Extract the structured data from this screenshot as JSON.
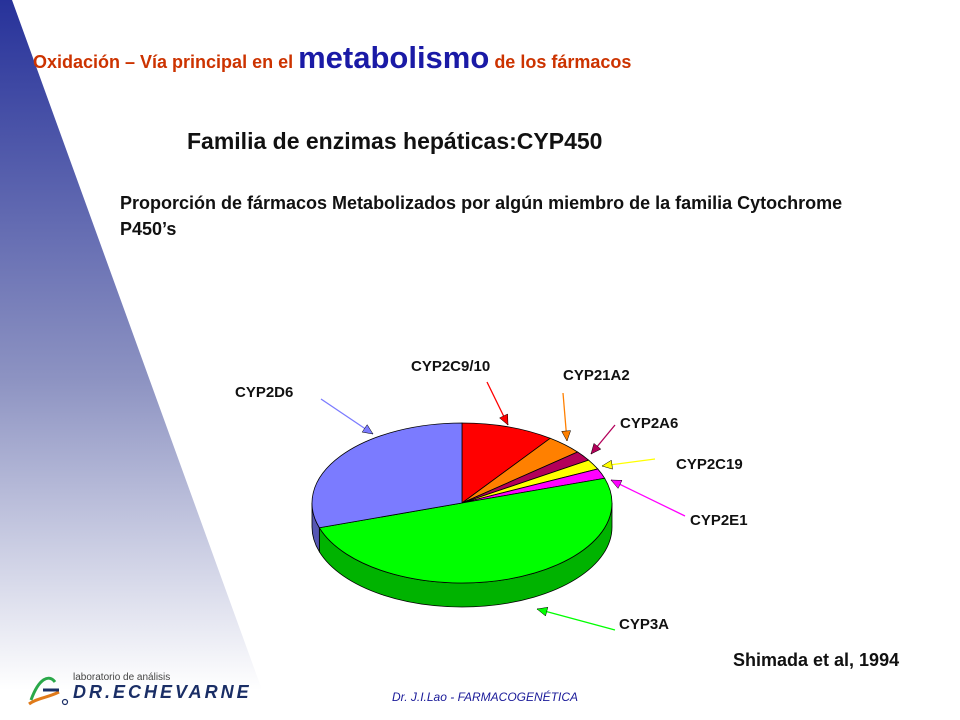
{
  "header": {
    "part1": "Oxidación – Vía principal en el ",
    "part2": "metabolismo",
    "part3": " de los fármacos"
  },
  "subtitle": "Familia de enzimas hepáticas:CYP450",
  "description": "Proporción de fármacos Metabolizados por algún miembro de la familia Cytochrome P450’s",
  "citation": "Shimada et al, 1994",
  "footer": "Dr. J.I.Lao - FARMACOGENÉTICA",
  "logo": {
    "line1": "laboratorio de análisis",
    "line2": "DR.ECHEVARNE"
  },
  "chart_data": {
    "type": "pie",
    "slices": [
      {
        "label": "CYP2C9/10",
        "value": 10,
        "color": "#ff0000"
      },
      {
        "label": "CYP21A2",
        "value": 4,
        "color": "#ff8000"
      },
      {
        "label": "CYP2A6",
        "value": 2,
        "color": "#b3005a"
      },
      {
        "label": "CYP2C19",
        "value": 2,
        "color": "#ffff00"
      },
      {
        "label": "CYP2E1",
        "value": 2,
        "color": "#ff00ff"
      },
      {
        "label": "CYP3A",
        "value": 50,
        "color": "#00ff00"
      },
      {
        "label": "CYP2D6",
        "value": 30,
        "color": "#7b7bff"
      }
    ]
  }
}
